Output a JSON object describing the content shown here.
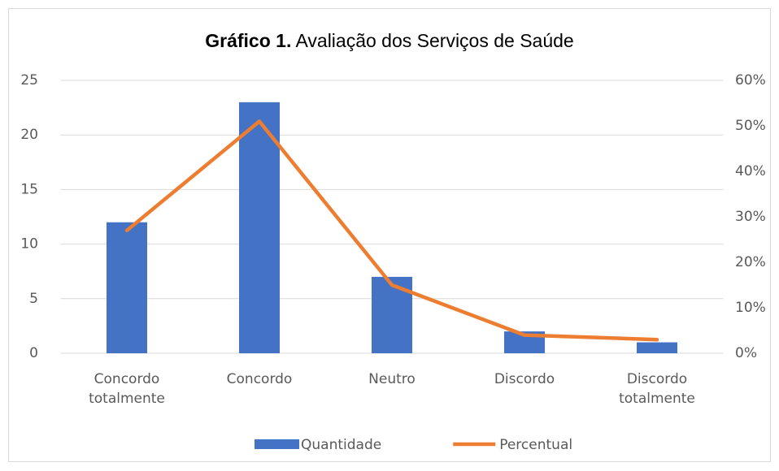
{
  "chart_data": {
    "type": "bar_line",
    "title": [
      "Gráfico 1.",
      "Avaliação dos Serviços de Saúde"
    ],
    "categories": [
      "Concordo totalmente",
      "Concordo",
      "Neutro",
      "Discordo",
      "Discordo totalmente"
    ],
    "series": [
      {
        "name": "Quantidade",
        "type": "bar",
        "color": "#4472c4",
        "values": [
          12,
          23,
          7,
          2,
          1
        ]
      },
      {
        "name": "Percentual",
        "type": "line",
        "axis": "y2",
        "color": "#ed7d31",
        "values": [
          27,
          51,
          15,
          4,
          3
        ]
      }
    ],
    "ylim": [
      0,
      25
    ],
    "yticks": [
      0,
      5,
      10,
      15,
      20,
      25
    ],
    "y2lim": [
      0,
      60
    ],
    "y2ticks": [
      {
        "value": 0,
        "label": "0%"
      },
      {
        "value": 10,
        "label": "10%"
      },
      {
        "value": 20,
        "label": "20%"
      },
      {
        "value": 30,
        "label": "30%"
      },
      {
        "value": 40,
        "label": "40%"
      },
      {
        "value": 50,
        "label": "50%"
      },
      {
        "value": 60,
        "label": "60%"
      }
    ],
    "grid": true,
    "legend": "bottom"
  }
}
